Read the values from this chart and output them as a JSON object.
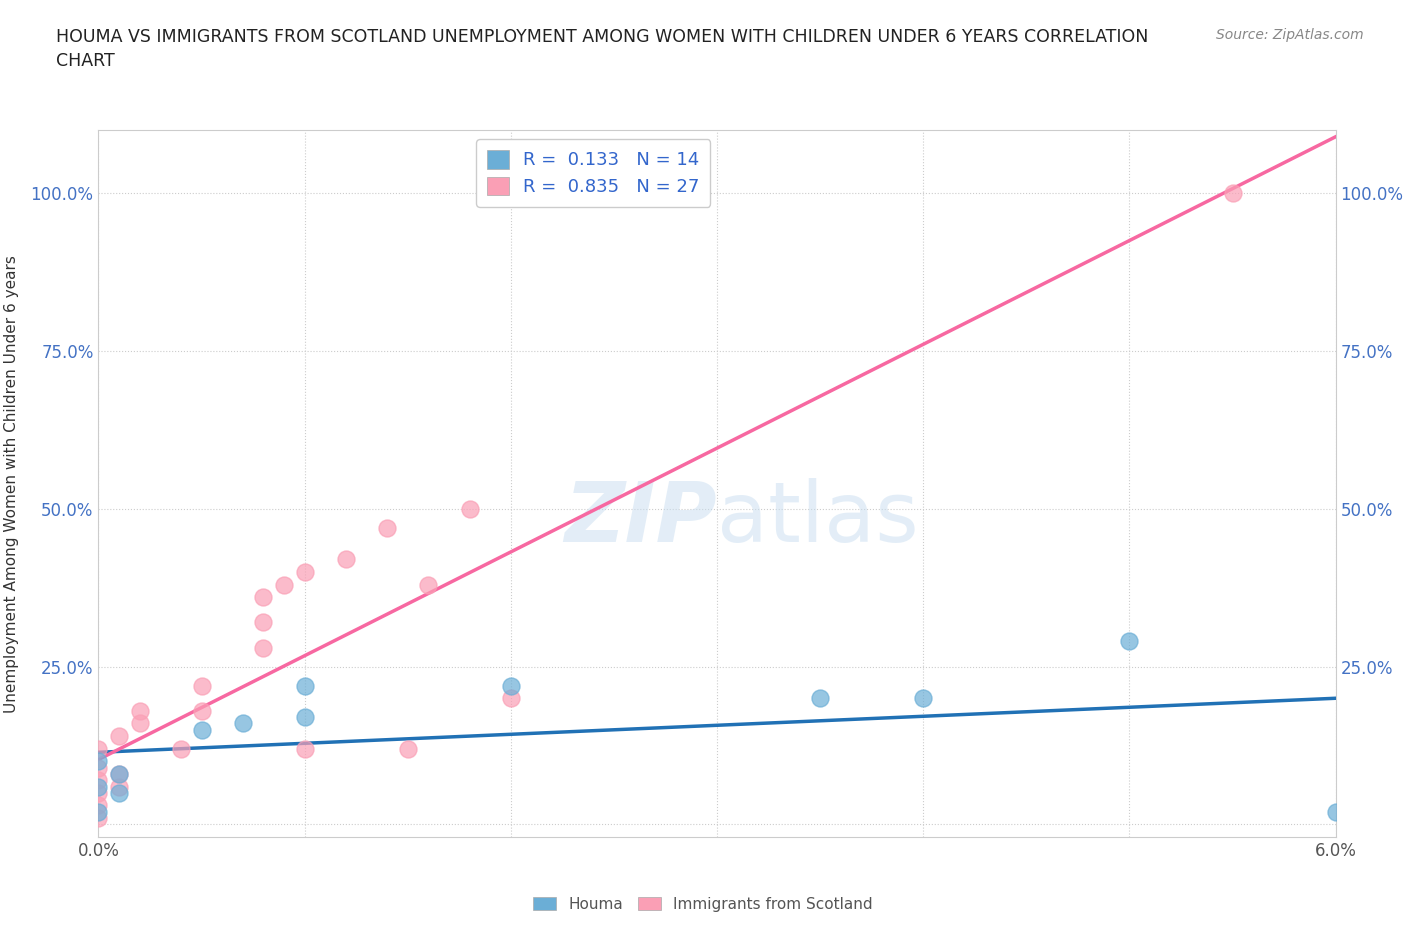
{
  "title": "HOUMA VS IMMIGRANTS FROM SCOTLAND UNEMPLOYMENT AMONG WOMEN WITH CHILDREN UNDER 6 YEARS CORRELATION\nCHART",
  "source": "Source: ZipAtlas.com",
  "ylabel_label": "Unemployment Among Women with Children Under 6 years",
  "xlim": [
    0.0,
    0.06
  ],
  "ylim": [
    -0.02,
    1.1
  ],
  "xticks": [
    0.0,
    0.01,
    0.02,
    0.03,
    0.04,
    0.05,
    0.06
  ],
  "xticklabels": [
    "0.0%",
    "",
    "",
    "",
    "",
    "",
    "6.0%"
  ],
  "yticks": [
    0.0,
    0.25,
    0.5,
    0.75,
    1.0
  ],
  "yticklabels": [
    "",
    "25.0%",
    "50.0%",
    "75.0%",
    "100.0%"
  ],
  "houma_color": "#6baed6",
  "scotland_color": "#fa9fb5",
  "houma_line_color": "#2171b5",
  "scotland_line_color": "#f768a1",
  "houma_R": 0.133,
  "houma_N": 14,
  "scotland_R": 0.835,
  "scotland_N": 27,
  "houma_x": [
    0.0,
    0.0,
    0.0,
    0.001,
    0.001,
    0.005,
    0.007,
    0.01,
    0.01,
    0.02,
    0.035,
    0.04,
    0.05,
    0.06
  ],
  "houma_y": [
    0.02,
    0.06,
    0.1,
    0.05,
    0.08,
    0.15,
    0.16,
    0.17,
    0.22,
    0.22,
    0.2,
    0.2,
    0.29,
    0.02
  ],
  "scotland_x": [
    0.0,
    0.0,
    0.0,
    0.0,
    0.0,
    0.0,
    0.001,
    0.001,
    0.001,
    0.002,
    0.002,
    0.004,
    0.005,
    0.005,
    0.008,
    0.008,
    0.008,
    0.009,
    0.01,
    0.01,
    0.012,
    0.014,
    0.015,
    0.016,
    0.018,
    0.02,
    0.055
  ],
  "scotland_y": [
    0.01,
    0.03,
    0.05,
    0.07,
    0.09,
    0.12,
    0.06,
    0.08,
    0.14,
    0.16,
    0.18,
    0.12,
    0.18,
    0.22,
    0.28,
    0.32,
    0.36,
    0.38,
    0.12,
    0.4,
    0.42,
    0.47,
    0.12,
    0.38,
    0.5,
    0.2,
    1.0
  ],
  "watermark_zip": "ZIP",
  "watermark_atlas": "atlas",
  "background_color": "#ffffff",
  "grid_color": "#cccccc"
}
